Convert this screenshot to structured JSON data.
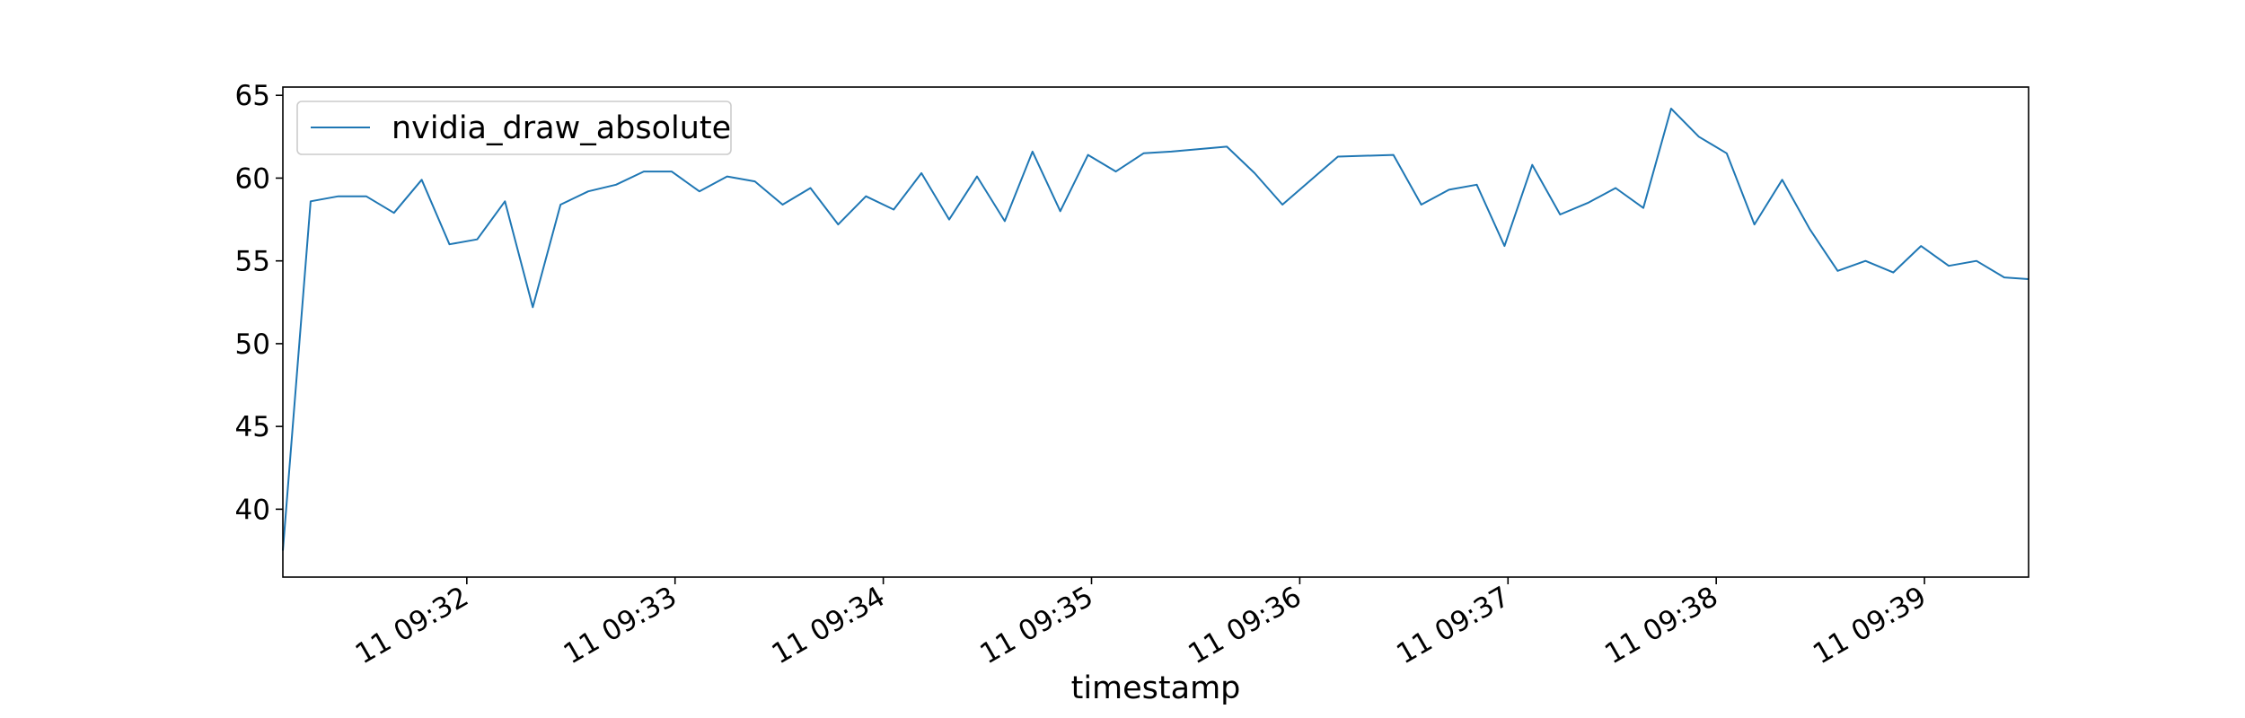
{
  "chart_data": {
    "type": "line",
    "title": "",
    "xlabel": "timestamp",
    "ylabel": "",
    "grid": false,
    "legend_position": "top-left",
    "x_unit": "seconds after 11 09:31:00",
    "xlim": [
      7,
      510
    ],
    "ylim": [
      35.9,
      65.5
    ],
    "x_ticks": [
      {
        "value": 60,
        "label": "11 09:32"
      },
      {
        "value": 120,
        "label": "11 09:33"
      },
      {
        "value": 180,
        "label": "11 09:34"
      },
      {
        "value": 240,
        "label": "11 09:35"
      },
      {
        "value": 300,
        "label": "11 09:36"
      },
      {
        "value": 360,
        "label": "11 09:37"
      },
      {
        "value": 420,
        "label": "11 09:38"
      },
      {
        "value": 480,
        "label": "11 09:39"
      }
    ],
    "y_ticks": [
      40,
      45,
      50,
      55,
      60,
      65
    ],
    "series": [
      {
        "name": "nvidia_draw_absolute",
        "color": "#1f77b4",
        "x": [
          7,
          15,
          23,
          31,
          39,
          47,
          55,
          63,
          71,
          79,
          87,
          95,
          103,
          111,
          119,
          127,
          135,
          143,
          151,
          159,
          167,
          175,
          183,
          191,
          199,
          207,
          215,
          223,
          231,
          239,
          247,
          255,
          263,
          279,
          287,
          295,
          311,
          327,
          335,
          343,
          351,
          359,
          367,
          375,
          383,
          391,
          399,
          407,
          415,
          423,
          431,
          439,
          447,
          455,
          463,
          471,
          479,
          487,
          495,
          503,
          510
        ],
        "y": [
          37.5,
          58.6,
          58.9,
          58.9,
          57.9,
          59.9,
          56.0,
          56.3,
          58.6,
          52.2,
          58.4,
          59.2,
          59.6,
          60.4,
          60.4,
          59.2,
          60.1,
          59.8,
          58.4,
          59.4,
          57.2,
          58.9,
          58.1,
          60.3,
          57.5,
          60.1,
          57.4,
          61.6,
          58.0,
          61.4,
          60.4,
          61.5,
          61.6,
          61.9,
          60.3,
          58.4,
          61.3,
          61.4,
          58.4,
          59.3,
          59.6,
          55.9,
          60.8,
          57.8,
          58.5,
          59.4,
          58.2,
          64.2,
          62.5,
          61.5,
          57.2,
          59.9,
          56.9,
          54.4,
          55.0,
          54.3,
          55.9,
          54.7,
          55.0,
          54.0,
          53.9
        ]
      }
    ]
  }
}
